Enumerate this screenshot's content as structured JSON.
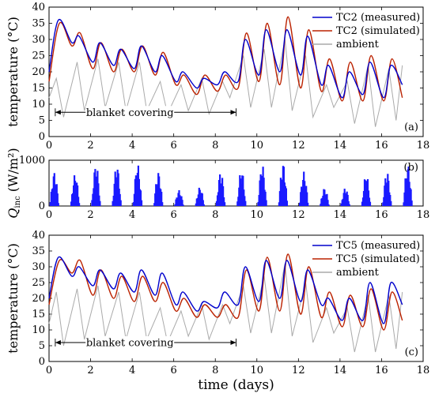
{
  "chart_data": [
    {
      "id": "a",
      "type": "line",
      "panel_label": "(a)",
      "ylabel": "temperature (°C)",
      "xlim": [
        0,
        18
      ],
      "ylim": [
        0,
        40
      ],
      "xticks": [
        "0",
        "2",
        "4",
        "6",
        "8",
        "10",
        "12",
        "14",
        "16",
        "18"
      ],
      "yticks": [
        "0",
        "5",
        "10",
        "15",
        "20",
        "25",
        "30",
        "35",
        "40"
      ],
      "legend_position": "top-right",
      "annotation": {
        "text": "blanket covering",
        "x_start": 0.3,
        "x_end": 9.0,
        "y": 7.5
      },
      "series": [
        {
          "name": "TC2 (measured)",
          "color": "#0000cc",
          "x": [
            0,
            0.45,
            1.1,
            1.45,
            2.1,
            2.45,
            3.1,
            3.45,
            4.1,
            4.45,
            5.1,
            5.45,
            6.1,
            6.45,
            7.1,
            7.45,
            8.1,
            8.45,
            9.1,
            9.45,
            10.1,
            10.45,
            11.1,
            11.45,
            12.1,
            12.45,
            13.1,
            13.45,
            14.1,
            14.45,
            15.1,
            15.45,
            16.1,
            16.45,
            17.0
          ],
          "values": [
            20,
            36,
            29,
            31,
            23,
            29,
            22,
            27,
            21,
            28,
            20,
            25,
            17,
            20,
            15,
            18,
            16,
            20,
            17,
            30,
            19,
            33,
            20,
            33,
            19,
            31,
            16,
            22,
            12,
            20,
            13,
            23,
            12,
            22,
            16
          ]
        },
        {
          "name": "TC2 (simulated)",
          "color": "#bb2200",
          "x": [
            0,
            0.5,
            1.1,
            1.5,
            2.1,
            2.5,
            3.1,
            3.5,
            4.1,
            4.5,
            5.1,
            5.5,
            6.1,
            6.5,
            7.1,
            7.5,
            8.1,
            8.5,
            9.1,
            9.5,
            10.1,
            10.5,
            11.1,
            11.5,
            12.1,
            12.5,
            13.1,
            13.5,
            14.1,
            14.5,
            15.1,
            15.5,
            16.1,
            16.5,
            17.0
          ],
          "values": [
            17,
            35,
            28,
            32,
            21,
            29,
            20,
            27,
            20,
            28,
            19,
            26,
            16,
            19,
            13,
            19,
            14,
            19,
            15,
            32,
            17,
            35,
            16,
            37,
            15,
            33,
            14,
            24,
            11,
            23,
            11,
            25,
            11,
            24,
            12
          ]
        },
        {
          "name": "ambient",
          "color": "#aaaaaa",
          "x": [
            0,
            0.35,
            0.7,
            1.35,
            1.7,
            2.35,
            2.7,
            3.35,
            3.7,
            4.35,
            4.7,
            5.35,
            5.7,
            6.35,
            6.7,
            7.35,
            7.7,
            8.35,
            8.7,
            9.35,
            9.7,
            10.35,
            10.7,
            11.35,
            11.7,
            12.35,
            12.7,
            13.35,
            13.7,
            14.35,
            14.7,
            15.35,
            15.7,
            16.35,
            16.7,
            17.0
          ],
          "values": [
            12,
            18,
            6,
            23,
            8,
            24,
            9,
            23,
            8,
            23,
            8,
            17,
            7,
            16,
            8,
            18,
            7,
            17,
            12,
            25,
            9,
            27,
            9,
            30,
            8,
            25,
            6,
            16,
            9,
            17,
            4,
            22,
            3,
            21,
            5,
            22
          ]
        }
      ]
    },
    {
      "id": "b",
      "type": "bar",
      "panel_label": "(b)",
      "ylabel": "Q_inc (W/m²)",
      "ylabel_main": "Q",
      "ylabel_sub": "inc",
      "ylabel_rest": "(W/m²)",
      "xlim": [
        0,
        18
      ],
      "ylim": [
        0,
        1000
      ],
      "xticks": [
        "0",
        "2",
        "4",
        "6",
        "8",
        "10",
        "12",
        "14",
        "16",
        "18"
      ],
      "yticks": [
        "0",
        "1000"
      ],
      "bar_color": "#1a1aff",
      "series": [
        {
          "name": "",
          "day_start": [
            0,
            1,
            2,
            3,
            4,
            5,
            6,
            7,
            8,
            9,
            10,
            11,
            12,
            13,
            14,
            15,
            16,
            17
          ],
          "values": [
            750,
            700,
            920,
            900,
            920,
            750,
            350,
            420,
            750,
            800,
            900,
            950,
            750,
            400,
            400,
            700,
            750,
            920
          ]
        }
      ]
    },
    {
      "id": "c",
      "type": "line",
      "panel_label": "(c)",
      "ylabel": "temperature (°C)",
      "xlabel": "time (days)",
      "xlim": [
        0,
        18
      ],
      "ylim": [
        0,
        40
      ],
      "xticks": [
        "0",
        "2",
        "4",
        "6",
        "8",
        "10",
        "12",
        "14",
        "16",
        "18"
      ],
      "yticks": [
        "0",
        "5",
        "10",
        "15",
        "20",
        "25",
        "30",
        "35",
        "40"
      ],
      "legend_position": "top-right",
      "annotation": {
        "text": "blanket covering",
        "x_start": 0.3,
        "x_end": 9.0,
        "y": 6
      },
      "series": [
        {
          "name": "TC5 (measured)",
          "color": "#0000cc",
          "x": [
            0,
            0.45,
            1.1,
            1.45,
            2.1,
            2.45,
            3.1,
            3.45,
            4.1,
            4.45,
            5.1,
            5.45,
            6.1,
            6.45,
            7.1,
            7.45,
            8.1,
            8.45,
            9.1,
            9.45,
            10.1,
            10.45,
            11.1,
            11.45,
            12.1,
            12.45,
            13.1,
            13.45,
            14.1,
            14.45,
            15.1,
            15.45,
            16.1,
            16.45,
            17.0
          ],
          "values": [
            20,
            33,
            27,
            30,
            24,
            29,
            23,
            28,
            22,
            29,
            21,
            28,
            18,
            22,
            16,
            19,
            17,
            22,
            18,
            30,
            19,
            32,
            20,
            32,
            19,
            29,
            18,
            20,
            13,
            20,
            13,
            25,
            12,
            25,
            18
          ]
        },
        {
          "name": "TC5 (simulated)",
          "color": "#bb2200",
          "x": [
            0,
            0.5,
            1.1,
            1.5,
            2.1,
            2.5,
            3.1,
            3.5,
            4.1,
            4.5,
            5.1,
            5.5,
            6.1,
            6.5,
            7.1,
            7.5,
            8.1,
            8.5,
            9.1,
            9.5,
            10.1,
            10.5,
            11.1,
            11.5,
            12.1,
            12.5,
            13.1,
            13.5,
            14.1,
            14.5,
            15.1,
            15.5,
            16.1,
            16.5,
            17.0
          ],
          "values": [
            18,
            32,
            28,
            32,
            21,
            29,
            20,
            27,
            19,
            27,
            19,
            25,
            16,
            20,
            14,
            18,
            14,
            18,
            14,
            29,
            16,
            33,
            16,
            34,
            15,
            30,
            14,
            22,
            11,
            21,
            11,
            23,
            10,
            22,
            13
          ]
        },
        {
          "name": "ambient",
          "color": "#aaaaaa",
          "x": [
            0,
            0.35,
            0.7,
            1.35,
            1.7,
            2.35,
            2.7,
            3.35,
            3.7,
            4.35,
            4.7,
            5.35,
            5.7,
            6.35,
            6.7,
            7.35,
            7.7,
            8.35,
            8.7,
            9.35,
            9.7,
            10.35,
            10.7,
            11.35,
            11.7,
            12.35,
            12.7,
            13.35,
            13.7,
            14.35,
            14.7,
            15.35,
            15.7,
            16.35,
            16.7,
            17.0
          ],
          "values": [
            12,
            22,
            5,
            23,
            7,
            24,
            8,
            22,
            7,
            22,
            7,
            17,
            6,
            16,
            8,
            18,
            7,
            18,
            12,
            24,
            9,
            27,
            9,
            31,
            8,
            25,
            6,
            17,
            9,
            17,
            3,
            21,
            3,
            21,
            4,
            22
          ]
        }
      ]
    }
  ]
}
